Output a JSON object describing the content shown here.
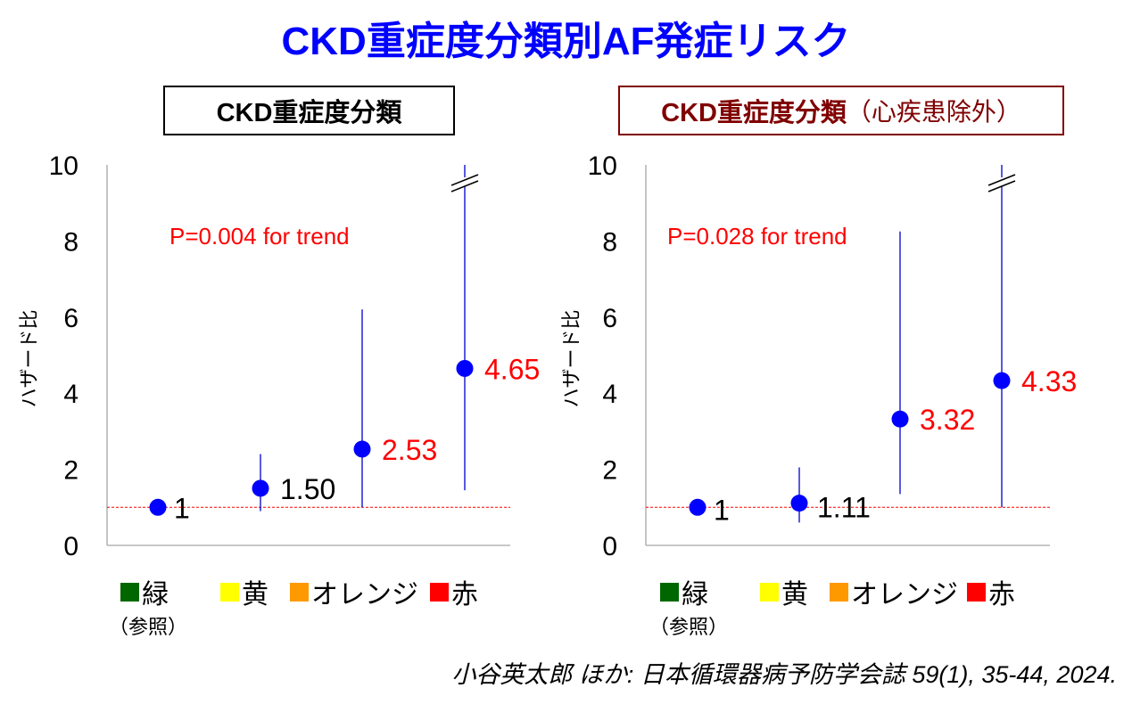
{
  "title": "CKD重症度分類別AF発症リスク",
  "panels": [
    {
      "header": "CKD重症度分類",
      "header_suffix": "",
      "annotation": "P=0.004 for trend"
    },
    {
      "header": "CKD重症度分類",
      "header_suffix": "（心疾患除外）",
      "annotation": "P=0.028 for trend"
    }
  ],
  "legend": {
    "items": [
      {
        "label": "緑",
        "color": "#006600"
      },
      {
        "label": "黄",
        "color": "#ffff00"
      },
      {
        "label": "オレンジ",
        "color": "#ff9900"
      },
      {
        "label": "赤",
        "color": "#ff0000"
      }
    ],
    "reference_note": "（参照）"
  },
  "citation": "小谷英太郎 ほか: 日本循環器病予防学会誌 59(1), 35-44, 2024.",
  "chart_data": [
    {
      "type": "scatter",
      "title": "CKD重症度分類",
      "ylabel": "ハザード比",
      "ylim": [
        0,
        10
      ],
      "yticks": [
        "0",
        "2",
        "4",
        "6",
        "8",
        "10"
      ],
      "reference_line": 1,
      "axis_break": true,
      "categories": [
        "緑",
        "黄",
        "オレンジ",
        "赤"
      ],
      "values": [
        1,
        1.5,
        2.53,
        4.65
      ],
      "value_labels": [
        "1",
        "1.50",
        "2.53",
        "4.65"
      ],
      "label_colors": [
        "#000000",
        "#000000",
        "#ff0000",
        "#ff0000"
      ],
      "ci_lower": [
        null,
        0.9,
        1.0,
        1.45
      ],
      "ci_upper": [
        null,
        2.4,
        6.2,
        10
      ],
      "marker_color": "#0000ff"
    },
    {
      "type": "scatter",
      "title": "CKD重症度分類（心疾患除外）",
      "ylabel": "ハザード比",
      "ylim": [
        0,
        10
      ],
      "yticks": [
        "0",
        "2",
        "4",
        "6",
        "8",
        "10"
      ],
      "reference_line": 1,
      "axis_break": true,
      "categories": [
        "緑",
        "黄",
        "オレンジ",
        "赤"
      ],
      "values": [
        1,
        1.11,
        3.32,
        4.33
      ],
      "value_labels": [
        "1",
        "1.11",
        "3.32",
        "4.33"
      ],
      "label_colors": [
        "#000000",
        "#000000",
        "#ff0000",
        "#ff0000"
      ],
      "ci_lower": [
        null,
        0.6,
        1.35,
        1.0
      ],
      "ci_upper": [
        null,
        2.05,
        8.25,
        10
      ],
      "marker_color": "#0000ff"
    }
  ]
}
